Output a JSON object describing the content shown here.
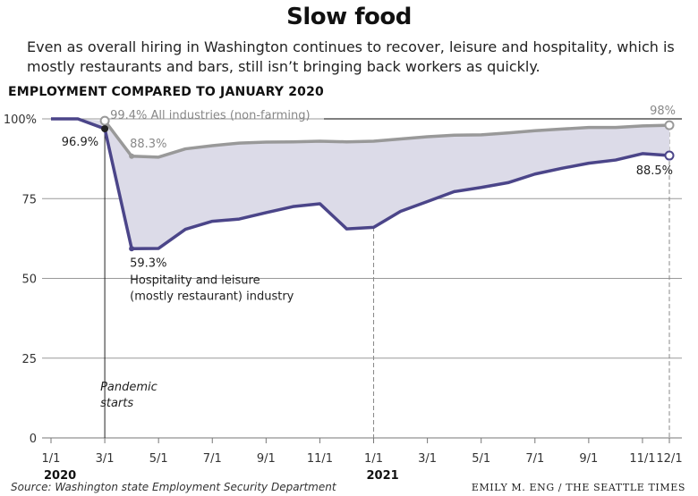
{
  "title": "Slow food",
  "subtitle": "Even as overall hiring in Washington continues to recover, leisure and hospitality, which is mostly restaurants and bars, still isn’t bringing back workers as quickly.",
  "section_label": "EMPLOYMENT COMPARED TO JANUARY 2020",
  "source": "Source: Washington state Employment Security Department",
  "credit": "EMILY M. ENG / THE SEATTLE TIMES",
  "colors": {
    "all_industries": "#999999",
    "hospitality": "#4b4589",
    "gap_fill": "#dcdbe8",
    "grid": "#999999"
  },
  "chart_data": {
    "type": "line",
    "ylim": [
      0,
      100
    ],
    "y_ticks": [
      {
        "value": 0,
        "label": "0"
      },
      {
        "value": 25,
        "label": "25"
      },
      {
        "value": 50,
        "label": "50"
      },
      {
        "value": 75,
        "label": "75"
      },
      {
        "value": 100,
        "label": "100%"
      }
    ],
    "x_ticks": [
      {
        "index": 0,
        "label": "1/1"
      },
      {
        "index": 2,
        "label": "3/1"
      },
      {
        "index": 4,
        "label": "5/1"
      },
      {
        "index": 6,
        "label": "7/1"
      },
      {
        "index": 8,
        "label": "9/1"
      },
      {
        "index": 10,
        "label": "11/1"
      },
      {
        "index": 12,
        "label": "1/1"
      },
      {
        "index": 14,
        "label": "3/1"
      },
      {
        "index": 16,
        "label": "5/1"
      },
      {
        "index": 18,
        "label": "7/1"
      },
      {
        "index": 20,
        "label": "9/1"
      },
      {
        "index": 22,
        "label": "11/1"
      },
      {
        "index": 23,
        "label": "12/1"
      }
    ],
    "year_labels": [
      {
        "index": 0,
        "label": "2020"
      },
      {
        "index": 12,
        "label": "2021"
      }
    ],
    "months": [
      "2020-01",
      "2020-02",
      "2020-03",
      "2020-04",
      "2020-05",
      "2020-06",
      "2020-07",
      "2020-08",
      "2020-09",
      "2020-10",
      "2020-11",
      "2020-12",
      "2021-01",
      "2021-02",
      "2021-03",
      "2021-04",
      "2021-05",
      "2021-06",
      "2021-07",
      "2021-08",
      "2021-09",
      "2021-10",
      "2021-11",
      "2021-12"
    ],
    "series": [
      {
        "name": "All industries (non-farming)",
        "values": [
          100,
          100,
          99.4,
          88.3,
          88.0,
          90.6,
          91.6,
          92.4,
          92.7,
          92.8,
          93.0,
          92.8,
          93.0,
          93.7,
          94.4,
          94.9,
          95.0,
          95.6,
          96.3,
          96.8,
          97.3,
          97.3,
          97.8,
          98.0
        ]
      },
      {
        "name": "Hospitality and leisure (mostly restaurant) industry",
        "values": [
          100,
          100,
          96.9,
          59.3,
          59.4,
          65.4,
          67.9,
          68.6,
          70.6,
          72.5,
          73.4,
          65.5,
          66.0,
          71.0,
          74.1,
          77.2,
          78.5,
          80.0,
          82.7,
          84.5,
          86.1,
          87.1,
          89.1,
          88.5
        ]
      }
    ],
    "annotations": {
      "all_peak_label": "99.4%",
      "all_series_label": "All industries (non-farming)",
      "all_trough_label": "88.3%",
      "all_end_label": "98%",
      "hosp_peak_label": "96.9%",
      "hosp_trough_label": "59.3%",
      "hosp_series_label_line1": "Hospitality and leisure",
      "hosp_series_label_line2": "(mostly restaurant) industry",
      "hosp_end_label": "88.5%",
      "pandemic_line1": "Pandemic",
      "pandemic_line2": "starts"
    }
  }
}
